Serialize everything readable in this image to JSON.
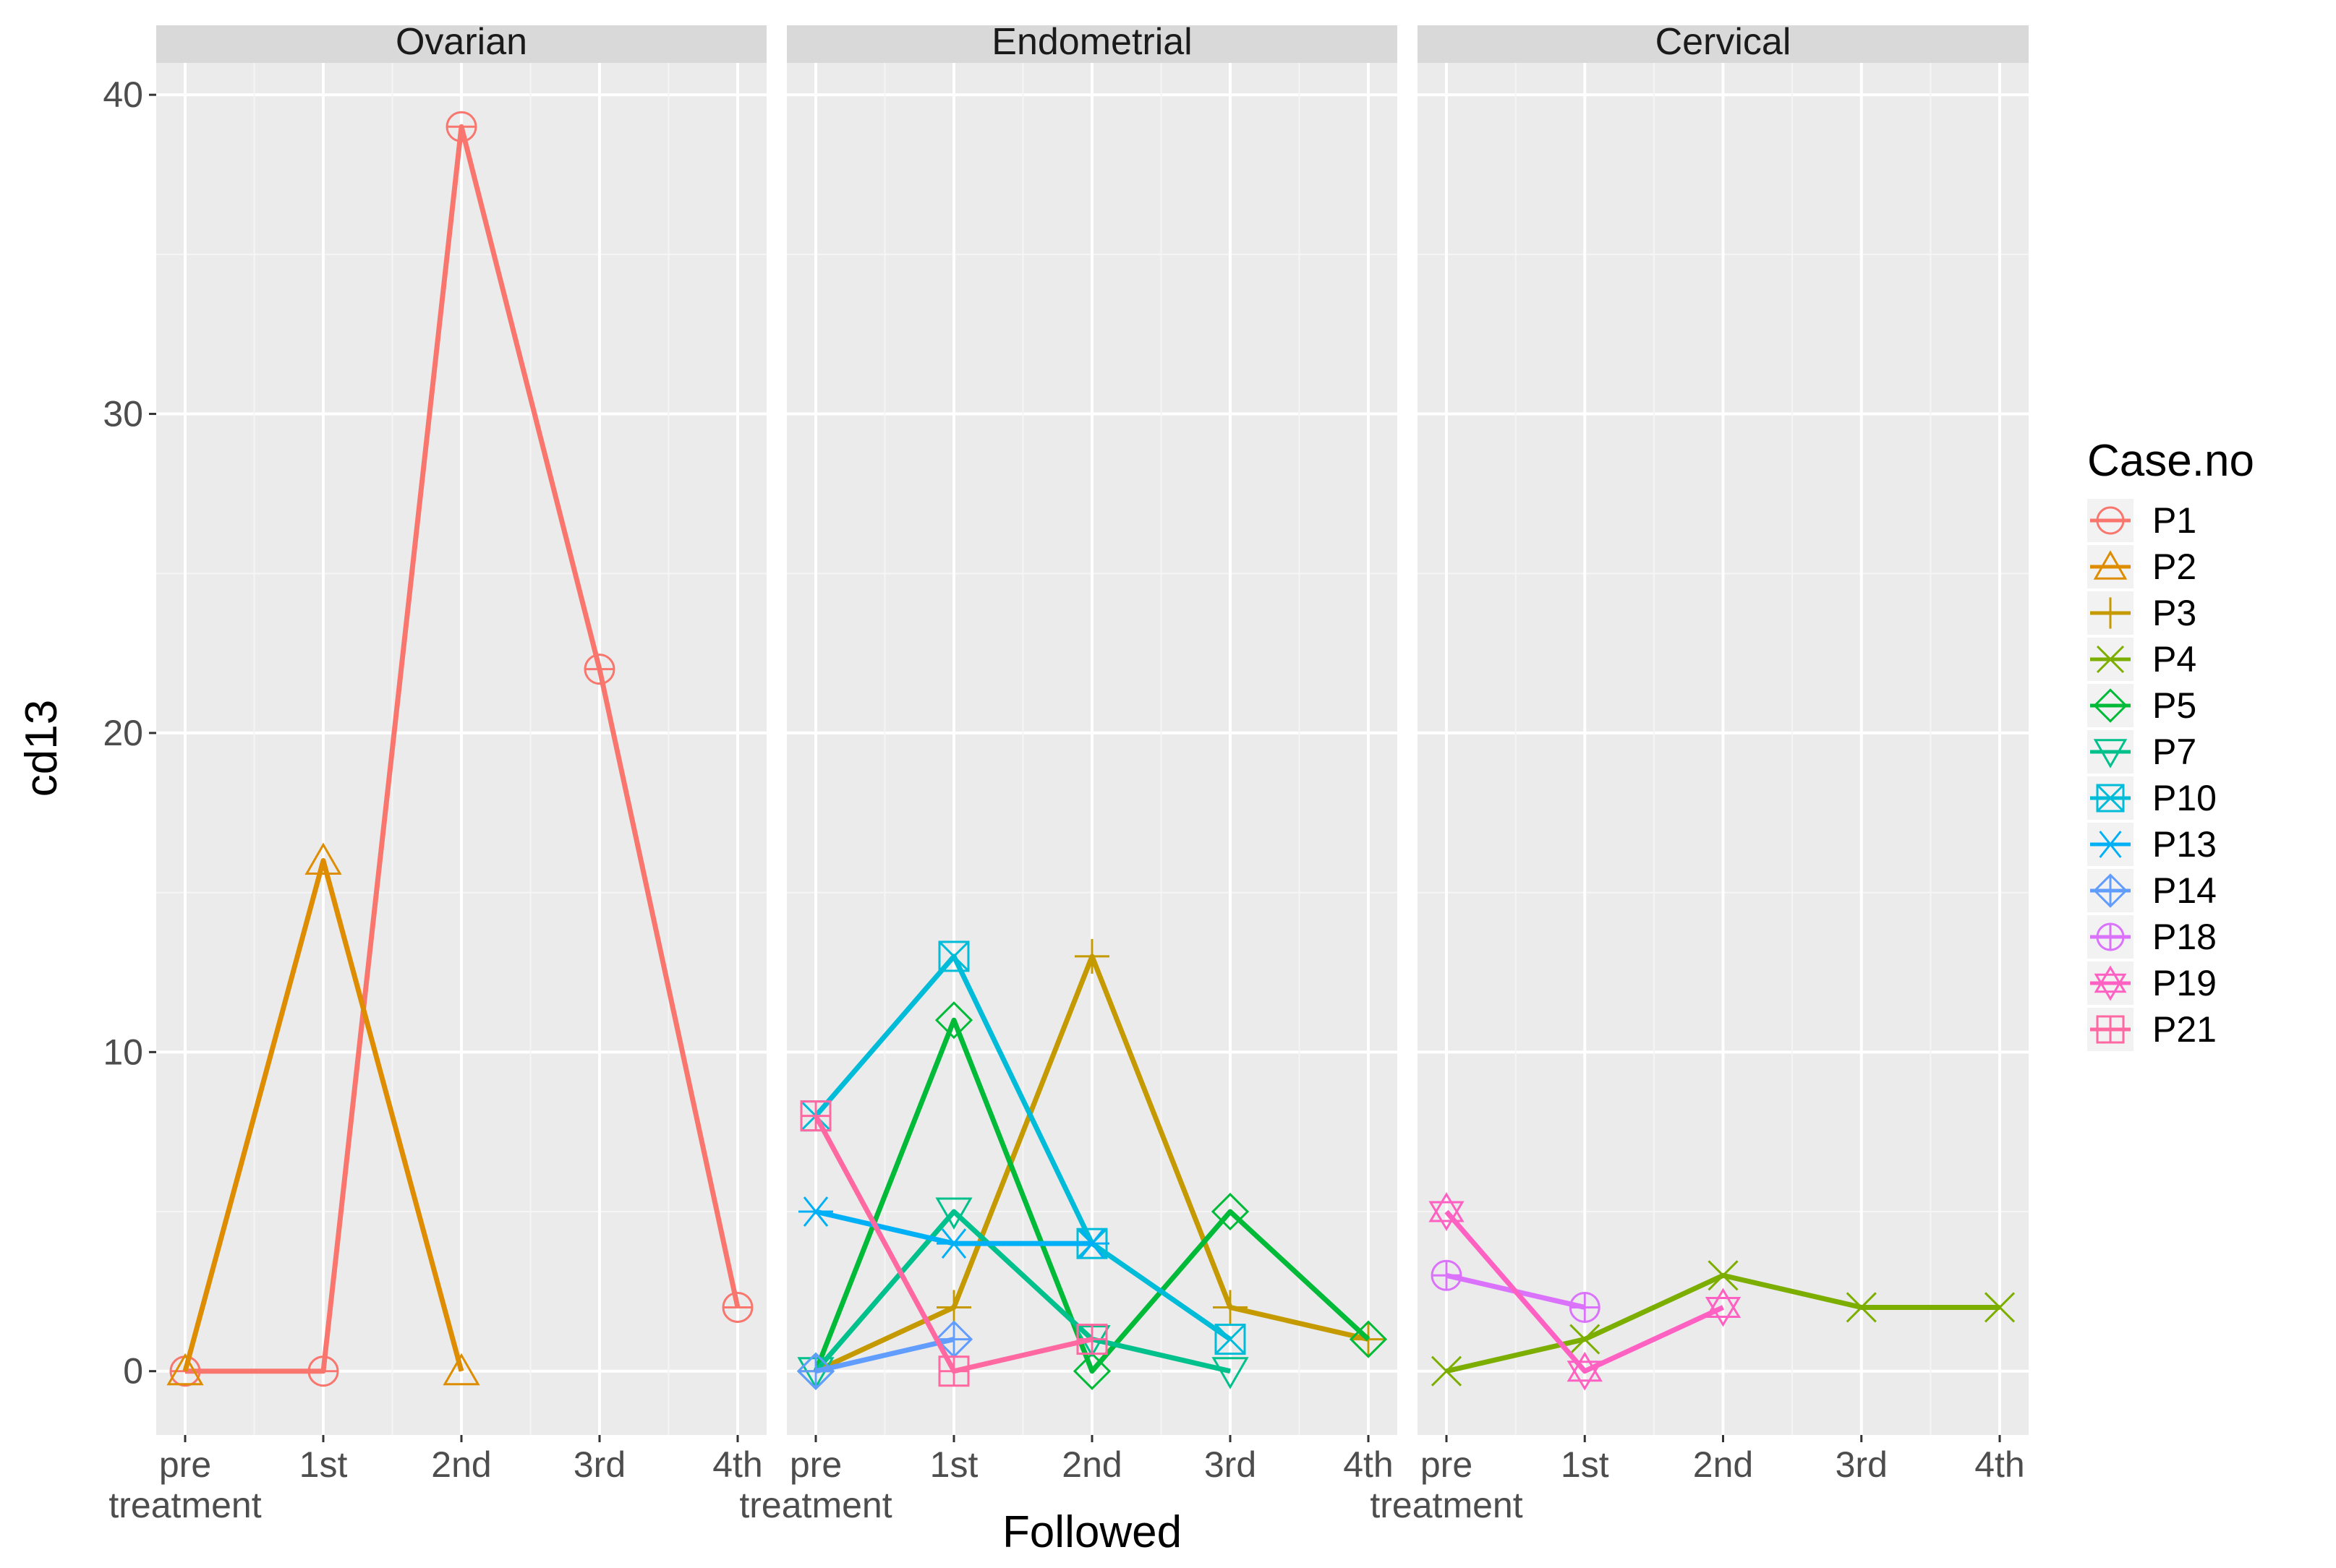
{
  "chart_data": {
    "type": "line",
    "facet_by": "cancer type",
    "panels": [
      {
        "name": "Ovarian"
      },
      {
        "name": "Endometrial"
      },
      {
        "name": "Cervical"
      }
    ],
    "categories": [
      "pre treatment",
      "1st",
      "2nd",
      "3rd",
      "4th"
    ],
    "category_lines": [
      [
        "pre",
        "treatment"
      ],
      [
        "1st"
      ],
      [
        "2nd"
      ],
      [
        "3rd"
      ],
      [
        "4th"
      ]
    ],
    "xlabel": "Followed",
    "ylabel": "cd13",
    "ylim": [
      -2,
      41
    ],
    "yticks": [
      0,
      10,
      20,
      30,
      40
    ],
    "grid": true,
    "legend": {
      "title": "Case.no",
      "placement": "right"
    },
    "series": [
      {
        "name": "P1",
        "panel": "Ovarian",
        "color": "#F8766D",
        "shape": "circle-hline",
        "values": [
          0,
          0,
          39,
          22,
          2
        ]
      },
      {
        "name": "P2",
        "panel": "Ovarian",
        "color": "#DE8C00",
        "shape": "triangle",
        "values": [
          0,
          16,
          0,
          null,
          null
        ]
      },
      {
        "name": "P3",
        "panel": "Endometrial",
        "color": "#C49A00",
        "shape": "plus",
        "values": [
          0,
          2,
          13,
          2,
          1
        ]
      },
      {
        "name": "P5",
        "panel": "Endometrial",
        "color": "#00BA38",
        "shape": "diamond",
        "values": [
          0,
          11,
          0,
          5,
          1
        ]
      },
      {
        "name": "P7",
        "panel": "Endometrial",
        "color": "#00C08B",
        "shape": "triangle-down",
        "values": [
          0,
          5,
          1,
          0,
          null
        ]
      },
      {
        "name": "P10",
        "panel": "Endometrial",
        "color": "#00BCD8",
        "shape": "square-x",
        "values": [
          8,
          13,
          4,
          1,
          null
        ]
      },
      {
        "name": "P13",
        "panel": "Endometrial",
        "color": "#00B0F6",
        "shape": "asterisk",
        "values": [
          5,
          4,
          4,
          null,
          null
        ]
      },
      {
        "name": "P14",
        "panel": "Endometrial",
        "color": "#619CFF",
        "shape": "diamond-plus",
        "values": [
          0,
          1,
          null,
          null,
          null
        ]
      },
      {
        "name": "P21",
        "panel": "Endometrial",
        "color": "#FF68A1",
        "shape": "square-plus",
        "values": [
          8,
          0,
          1,
          null,
          null
        ]
      },
      {
        "name": "P4",
        "panel": "Cervical",
        "color": "#7CAE00",
        "shape": "x",
        "values": [
          0,
          1,
          3,
          2,
          2
        ]
      },
      {
        "name": "P18",
        "panel": "Cervical",
        "color": "#DB72FB",
        "shape": "circle-plus",
        "values": [
          3,
          2,
          null,
          null,
          null
        ]
      },
      {
        "name": "P19",
        "panel": "Cervical",
        "color": "#FF61C3",
        "shape": "star-of-david",
        "values": [
          5,
          0,
          2,
          null,
          null
        ]
      }
    ],
    "legend_order": [
      "P1",
      "P2",
      "P3",
      "P4",
      "P5",
      "P7",
      "P10",
      "P13",
      "P14",
      "P18",
      "P19",
      "P21"
    ]
  }
}
